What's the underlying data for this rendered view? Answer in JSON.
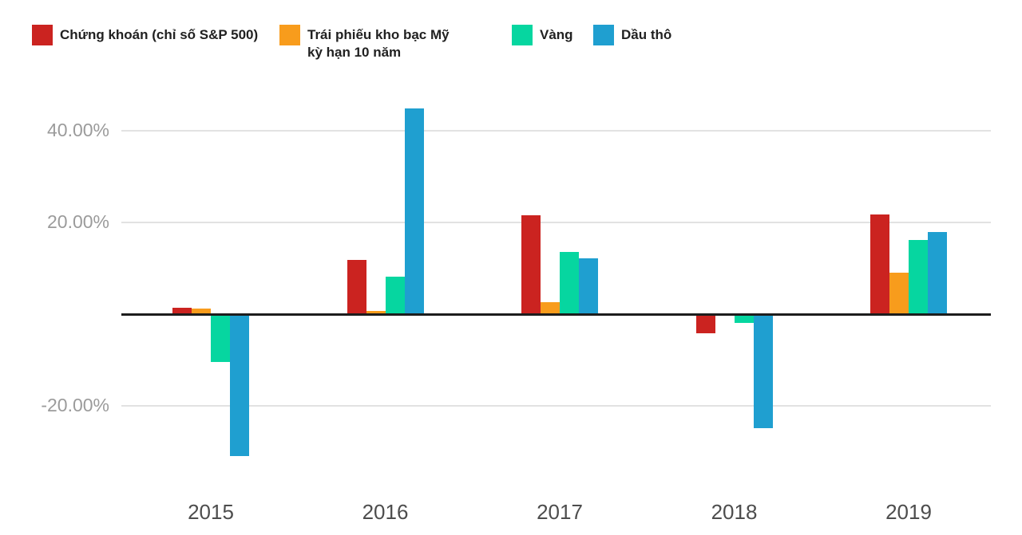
{
  "legend": {
    "items": [
      {
        "label": "Chứng khoán (chỉ số S&P 500)",
        "color": "#cb2320"
      },
      {
        "label": "Trái phiếu kho bạc Mỹ kỳ hạn 10 năm",
        "color": "#f89c1c"
      },
      {
        "label": "Vàng",
        "color": "#06d6a0"
      },
      {
        "label": "Dầu thô",
        "color": "#1f9fd0"
      }
    ]
  },
  "chart_data": {
    "type": "bar",
    "title": "",
    "xlabel": "",
    "ylabel": "",
    "categories": [
      "2015",
      "2016",
      "2017",
      "2018",
      "2019"
    ],
    "series": [
      {
        "name": "Chứng khoán (chỉ số S&P 500)",
        "color": "#cb2320",
        "values": [
          1.4,
          11.9,
          21.6,
          -4.2,
          21.7
        ]
      },
      {
        "name": "Trái phiếu kho bạc Mỹ kỳ hạn 10 năm",
        "color": "#f89c1c",
        "values": [
          1.2,
          0.7,
          2.6,
          0.0,
          9.1
        ]
      },
      {
        "name": "Vàng",
        "color": "#06d6a0",
        "values": [
          -10.4,
          8.2,
          13.6,
          -1.9,
          16.1
        ]
      },
      {
        "name": "Dầu thô",
        "color": "#1f9fd0",
        "values": [
          -30.9,
          44.8,
          12.2,
          -24.8,
          17.9
        ]
      }
    ],
    "y_ticks": [
      {
        "value": 40,
        "label": "40.00%"
      },
      {
        "value": 20,
        "label": "20.00%"
      },
      {
        "value": -20,
        "label": "-20.00%"
      }
    ],
    "ylim": [
      -37,
      46
    ],
    "unit": "%",
    "grid": true,
    "legend_position": "top",
    "zero_baseline": true
  }
}
